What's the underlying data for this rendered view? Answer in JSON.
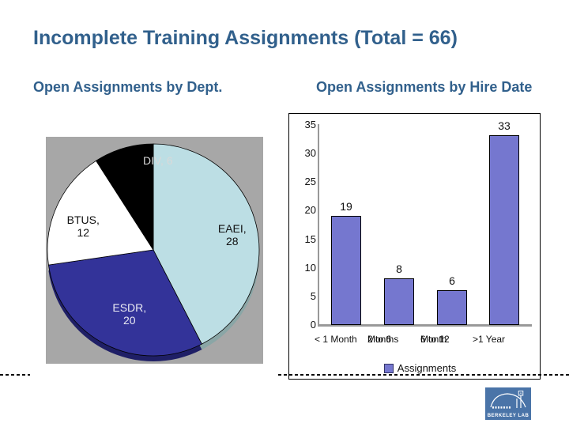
{
  "slide": {
    "title": "Incomplete Training Assignments (Total = 66)",
    "title_color": "#31608C"
  },
  "headings": {
    "pie": "Open Assignments by Dept.",
    "bar": "Open Assignments by Hire Date"
  },
  "chart_data": [
    {
      "type": "pie",
      "title": "Open Assignments by Dept.",
      "total": 66,
      "background": "#A7A7A7",
      "start_angle_deg": 0,
      "clockwise": true,
      "slices": [
        {
          "label": "EAEI",
          "value": 28,
          "color": "#BCDEE4",
          "depth_color": "#8AA6A6",
          "label_lines": [
            "EAEI,",
            "28"
          ],
          "label_color": "#111111"
        },
        {
          "label": "ESDR",
          "value": 20,
          "color": "#333399",
          "depth_color": "#1F1F66",
          "label_lines": [
            "ESDR,",
            "20"
          ],
          "label_color": "#E9E9F2"
        },
        {
          "label": "BTUS",
          "value": 12,
          "color": "#FFFFFF",
          "depth_color": "#BFBFBF",
          "label_lines": [
            "BTUS,",
            "12"
          ],
          "label_color": "#111111"
        },
        {
          "label": "DIV",
          "value": 6,
          "color": "#000000",
          "depth_color": "#111111",
          "label_lines": [
            "DIV, 6"
          ],
          "label_color": "#D9D9D9"
        }
      ]
    },
    {
      "type": "bar",
      "title": "Open Assignments by Hire Date",
      "categories": [
        [
          "< 1 Month"
        ],
        [
          "2 to 6",
          "Months"
        ],
        [
          "6 to 12",
          "Month"
        ],
        [
          ">1 Year"
        ]
      ],
      "values": [
        19,
        8,
        6,
        33
      ],
      "data_labels": [
        "19",
        "8",
        "6",
        "33"
      ],
      "y_ticks": [
        0,
        5,
        10,
        15,
        20,
        25,
        30,
        35
      ],
      "ylim": [
        0,
        35
      ],
      "grid": false,
      "legend": "Assignments",
      "legend_position": "bottom",
      "bar_color": "#7577CF",
      "axis_color": "#999999"
    }
  ],
  "footer": {
    "logo_text": "BERKELEY LAB",
    "logo_color": "#4A74A8"
  }
}
